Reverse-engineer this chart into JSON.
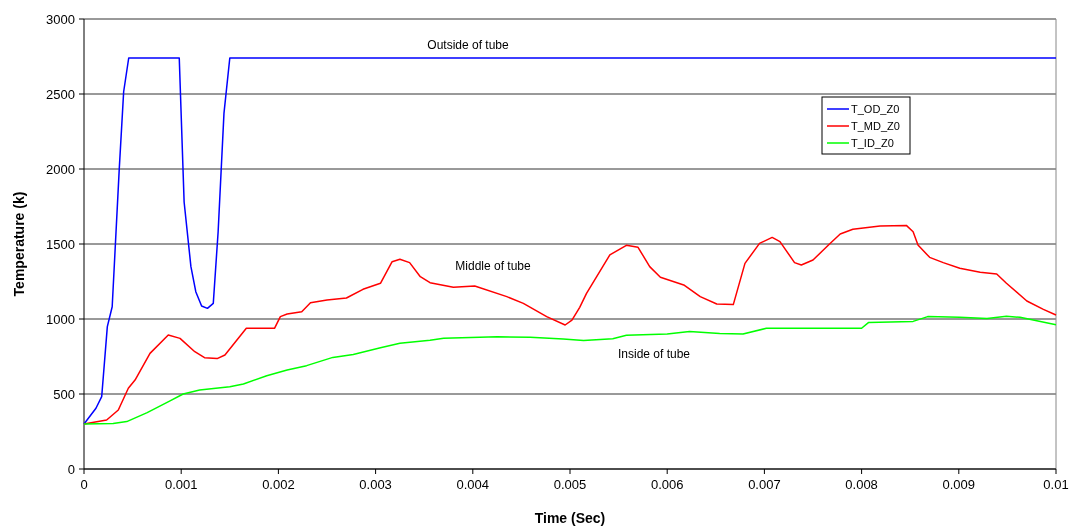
{
  "chart_data": {
    "type": "line",
    "xlabel": "Time (Sec)",
    "ylabel": "Temperature (k)",
    "xlim": [
      0,
      0.01
    ],
    "xticks": [
      0,
      0.001,
      0.002,
      0.003,
      0.004,
      0.005,
      0.006,
      0.007,
      0.008,
      0.009,
      0.01
    ],
    "ylim": [
      0,
      3000
    ],
    "yticks": [
      0,
      500,
      1000,
      1500,
      2000,
      2500,
      3000
    ],
    "grid": "y",
    "legend": "top right",
    "marker": "none",
    "line_style": "solid",
    "annotations": [
      "Outside of tube",
      "Middle of tube",
      "Inside of tube"
    ],
    "series": [
      {
        "name": "T_OD_Z0",
        "color": "#0000ff",
        "x": [
          0,
          0.000123,
          0.000182,
          0.00024,
          0.00029,
          0.000363,
          0.000408,
          0.00046,
          0.00098,
          0.00103,
          0.0011,
          0.00115,
          0.00121,
          0.00127,
          0.00133,
          0.00138,
          0.00144,
          0.0015,
          0.01
        ],
        "values": [
          300,
          405,
          482,
          949,
          1082,
          2004,
          2515,
          2740,
          2740,
          1780,
          1349,
          1182,
          1087,
          1071,
          1104,
          1582,
          2371,
          2740,
          2740
        ]
      },
      {
        "name": "T_MD_Z0",
        "color": "#ff0000",
        "x": [
          0,
          0.000233,
          0.000353,
          0.000456,
          0.000525,
          0.000679,
          0.000867,
          0.000988,
          0.00114,
          0.00124,
          0.00137,
          0.00145,
          0.00167,
          0.00196,
          0.00202,
          0.00209,
          0.00224,
          0.00233,
          0.0025,
          0.0027,
          0.00287,
          0.00305,
          0.00317,
          0.00325,
          0.00335,
          0.00346,
          0.00356,
          0.0038,
          0.00402,
          0.00435,
          0.00452,
          0.00476,
          0.00495,
          0.00502,
          0.0051,
          0.00517,
          0.00541,
          0.00558,
          0.0057,
          0.00582,
          0.00593,
          0.00617,
          0.00634,
          0.00651,
          0.00668,
          0.0068,
          0.00695,
          0.00708,
          0.00716,
          0.00731,
          0.00738,
          0.0075,
          0.00767,
          0.00778,
          0.00791,
          0.00819,
          0.00846,
          0.00853,
          0.00858,
          0.0087,
          0.00884,
          0.00901,
          0.00922,
          0.00939,
          0.00949,
          0.0097,
          0.00987,
          0.01
        ],
        "values": [
          300,
          327,
          393,
          538,
          593,
          771,
          893,
          871,
          782,
          742,
          736,
          760,
          938,
          938,
          1016,
          1033,
          1049,
          1109,
          1127,
          1140,
          1198,
          1238,
          1382,
          1398,
          1376,
          1282,
          1242,
          1211,
          1220,
          1149,
          1104,
          1016,
          960,
          993,
          1078,
          1171,
          1427,
          1491,
          1478,
          1349,
          1278,
          1227,
          1149,
          1100,
          1096,
          1371,
          1504,
          1544,
          1516,
          1376,
          1360,
          1393,
          1500,
          1567,
          1598,
          1620,
          1624,
          1582,
          1493,
          1411,
          1376,
          1338,
          1311,
          1300,
          1238,
          1120,
          1064,
          1027
        ]
      },
      {
        "name": "T_ID_Z0",
        "color": "#00ff00",
        "x": [
          0,
          0.0003,
          0.00044,
          0.00065,
          0.00088,
          0.00102,
          0.00119,
          0.0015,
          0.00164,
          0.00188,
          0.00209,
          0.00229,
          0.00256,
          0.00277,
          0.00305,
          0.00325,
          0.00356,
          0.0037,
          0.00407,
          0.00425,
          0.00459,
          0.00493,
          0.00514,
          0.00544,
          0.00558,
          0.006,
          0.00623,
          0.00654,
          0.00678,
          0.00702,
          0.008,
          0.00807,
          0.00853,
          0.00868,
          0.00901,
          0.00929,
          0.00949,
          0.00963,
          0.01
        ],
        "values": [
          300,
          304,
          316,
          376,
          453,
          500,
          527,
          549,
          567,
          622,
          660,
          689,
          744,
          764,
          809,
          838,
          858,
          871,
          878,
          882,
          878,
          867,
          856,
          869,
          891,
          900,
          916,
          904,
          900,
          938,
          938,
          976,
          984,
          1016,
          1011,
          1004,
          1018,
          1011,
          962
        ]
      }
    ]
  }
}
